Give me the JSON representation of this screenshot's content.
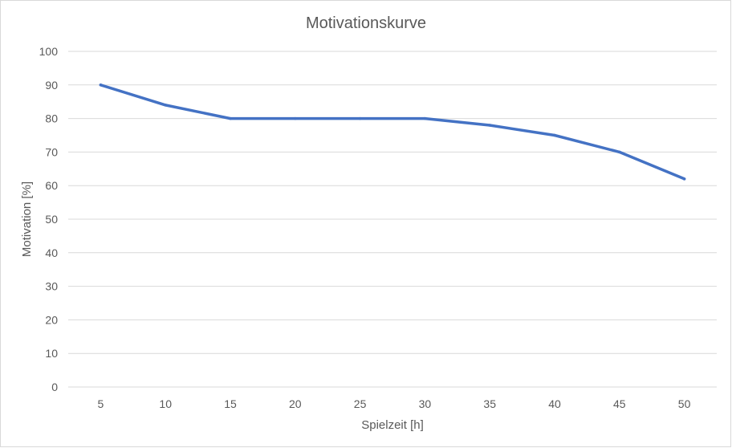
{
  "chart_data": {
    "type": "line",
    "title": "Motivationskurve",
    "xlabel": "Spielzeit [h]",
    "ylabel": "Motivation [%]",
    "categories": [
      "5",
      "10",
      "15",
      "20",
      "25",
      "30",
      "35",
      "40",
      "45",
      "50"
    ],
    "series": [
      {
        "values": [
          90,
          84,
          80,
          80,
          80,
          80,
          78,
          75,
          70,
          62
        ],
        "color": "#4472c4"
      }
    ],
    "ylim": [
      0,
      100
    ],
    "yticks": [
      "0",
      "10",
      "20",
      "30",
      "40",
      "50",
      "60",
      "70",
      "80",
      "90",
      "100"
    ],
    "grid": true,
    "legend": "none"
  }
}
